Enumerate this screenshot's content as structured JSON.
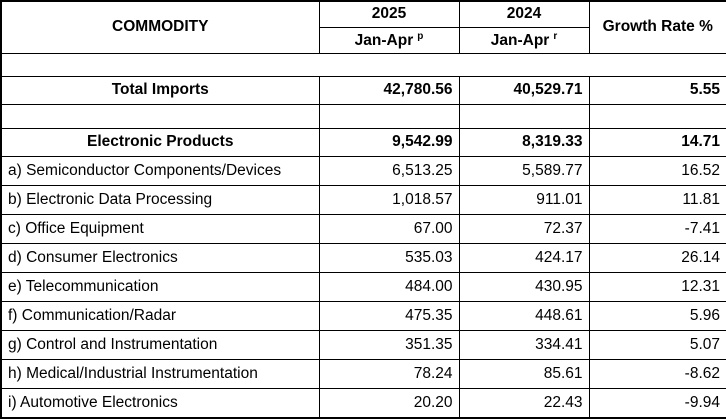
{
  "table": {
    "header": {
      "commodity_label": "COMMODITY",
      "year_2025": "2025",
      "year_2024": "2024",
      "period_2025": "Jan-Apr",
      "period_2025_sup": "p",
      "period_2024": "Jan-Apr",
      "period_2024_sup": "r",
      "growth_label": "Growth Rate %"
    },
    "total_row": {
      "label": "Total Imports",
      "v2025": "42,780.56",
      "v2024": "40,529.71",
      "growth": "5.55"
    },
    "group_row": {
      "label": "Electronic Products",
      "v2025": "9,542.99",
      "v2024": "8,319.33",
      "growth": "14.71"
    },
    "rows": [
      {
        "label": "a) Semiconductor Components/Devices",
        "v2025": "6,513.25",
        "v2024": "5,589.77",
        "growth": "16.52"
      },
      {
        "label": "b) Electronic Data Processing",
        "v2025": "1,018.57",
        "v2024": "911.01",
        "growth": "11.81"
      },
      {
        "label": "c) Office Equipment",
        "v2025": "67.00",
        "v2024": "72.37",
        "growth": "-7.41"
      },
      {
        "label": "d) Consumer Electronics",
        "v2025": "535.03",
        "v2024": "424.17",
        "growth": "26.14"
      },
      {
        "label": "e) Telecommunication",
        "v2025": "484.00",
        "v2024": "430.95",
        "growth": "12.31"
      },
      {
        "label": "f) Communication/Radar",
        "v2025": "475.35",
        "v2024": "448.61",
        "growth": "5.96"
      },
      {
        "label": "g) Control and Instrumentation",
        "v2025": "351.35",
        "v2024": "334.41",
        "growth": "5.07"
      },
      {
        "label": "h) Medical/Industrial Instrumentation",
        "v2025": "78.24",
        "v2024": "85.61",
        "growth": "-8.62"
      },
      {
        "label": "i) Automotive Electronics",
        "v2025": "20.20",
        "v2024": "22.43",
        "growth": "-9.94"
      }
    ]
  }
}
